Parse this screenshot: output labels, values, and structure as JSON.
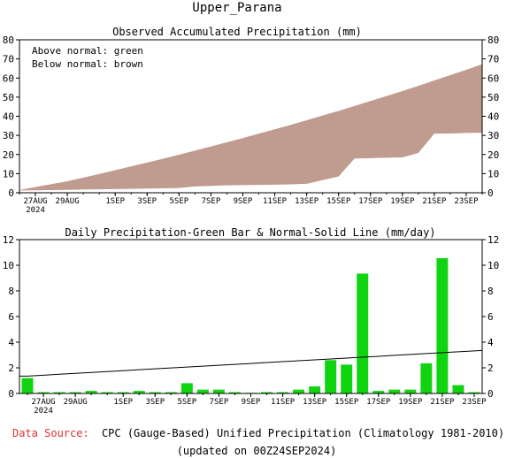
{
  "page": {
    "title": "Upper_Parana",
    "source_label": "Data Source:",
    "source_text": "CPC (Gauge-Based) Unified Precipitation (Climatology 1981-2010)",
    "updated": "(updated on 00Z24SEP2024)"
  },
  "colors": {
    "above_normal": "#00a000",
    "below_normal": "#c09b8f",
    "bar": "#11d411",
    "source_label": "#e03030",
    "line": "#000000"
  },
  "chart_data": [
    {
      "type": "area",
      "title": "Observed Accumulated Precipitation (mm)",
      "legend": [
        "Above normal: green",
        "Below normal: brown"
      ],
      "legend_position": "top-left",
      "x": [
        "26AUG",
        "27AUG",
        "28AUG",
        "29AUG",
        "30AUG",
        "31AUG",
        "1SEP",
        "2SEP",
        "3SEP",
        "4SEP",
        "5SEP",
        "6SEP",
        "7SEP",
        "8SEP",
        "9SEP",
        "10SEP",
        "11SEP",
        "12SEP",
        "13SEP",
        "14SEP",
        "15SEP",
        "16SEP",
        "17SEP",
        "18SEP",
        "19SEP",
        "20SEP",
        "21SEP",
        "22SEP",
        "23SEP",
        "24SEP"
      ],
      "x_tick_labels": [
        "27AUG",
        "29AUG",
        "1SEP",
        "3SEP",
        "5SEP",
        "7SEP",
        "9SEP",
        "11SEP",
        "13SEP",
        "15SEP",
        "17SEP",
        "19SEP",
        "21SEP",
        "23SEP"
      ],
      "x_sub_label": "2024",
      "series": [
        {
          "name": "Observed",
          "values": [
            1.2,
            1.3,
            1.4,
            1.5,
            1.7,
            1.8,
            1.9,
            2.0,
            2.2,
            2.3,
            2.5,
            3.3,
            3.6,
            3.9,
            4.0,
            4.1,
            4.2,
            4.4,
            4.7,
            6.6,
            8.5,
            17.9,
            18.1,
            18.3,
            18.5,
            20.8,
            30.9,
            31.0,
            31.3,
            31.4
          ]
        },
        {
          "name": "Normal",
          "values": [
            1.4,
            3.0,
            4.5,
            6.0,
            7.9,
            9.8,
            11.8,
            13.8,
            15.8,
            17.8,
            19.9,
            22.0,
            24.2,
            26.4,
            28.6,
            30.9,
            33.2,
            35.5,
            37.9,
            40.4,
            42.8,
            45.4,
            48.0,
            50.6,
            53.2,
            55.9,
            58.7,
            61.5,
            64.3,
            67.2
          ]
        }
      ],
      "ylim": [
        0,
        80
      ],
      "y_ticks": [
        0,
        10,
        20,
        30,
        40,
        50,
        60,
        70,
        80
      ]
    },
    {
      "type": "bar",
      "title": "Daily Precipitation-Green Bar & Normal-Solid Line (mm/day)",
      "x": [
        "26AUG",
        "27AUG",
        "28AUG",
        "29AUG",
        "30AUG",
        "31AUG",
        "1SEP",
        "2SEP",
        "3SEP",
        "4SEP",
        "5SEP",
        "6SEP",
        "7SEP",
        "8SEP",
        "9SEP",
        "10SEP",
        "11SEP",
        "12SEP",
        "13SEP",
        "14SEP",
        "15SEP",
        "16SEP",
        "17SEP",
        "18SEP",
        "19SEP",
        "20SEP",
        "21SEP",
        "22SEP",
        "23SEP"
      ],
      "x_tick_labels": [
        "27AUG",
        "29AUG",
        "1SEP",
        "3SEP",
        "5SEP",
        "7SEP",
        "9SEP",
        "11SEP",
        "13SEP",
        "15SEP",
        "17SEP",
        "19SEP",
        "21SEP",
        "23SEP"
      ],
      "x_sub_label": "2024",
      "series": [
        {
          "name": "Daily",
          "values": [
            1.2,
            0.1,
            0.1,
            0.1,
            0.2,
            0.1,
            0.1,
            0.2,
            0.1,
            0.1,
            0.8,
            0.3,
            0.3,
            0.1,
            0.05,
            0.1,
            0.1,
            0.3,
            0.55,
            2.6,
            2.25,
            9.35,
            0.2,
            0.3,
            0.3,
            2.35,
            10.55,
            0.65,
            0.1
          ]
        },
        {
          "name": "Normal",
          "values": [
            1.35,
            1.42,
            1.5,
            1.57,
            1.64,
            1.71,
            1.78,
            1.85,
            1.92,
            1.99,
            2.06,
            2.13,
            2.2,
            2.27,
            2.34,
            2.41,
            2.48,
            2.55,
            2.62,
            2.69,
            2.76,
            2.83,
            2.9,
            2.97,
            3.04,
            3.11,
            3.18,
            3.25,
            3.32
          ]
        }
      ],
      "ylim": [
        0,
        12
      ],
      "y_ticks": [
        0,
        2,
        4,
        6,
        8,
        10,
        12
      ]
    }
  ]
}
